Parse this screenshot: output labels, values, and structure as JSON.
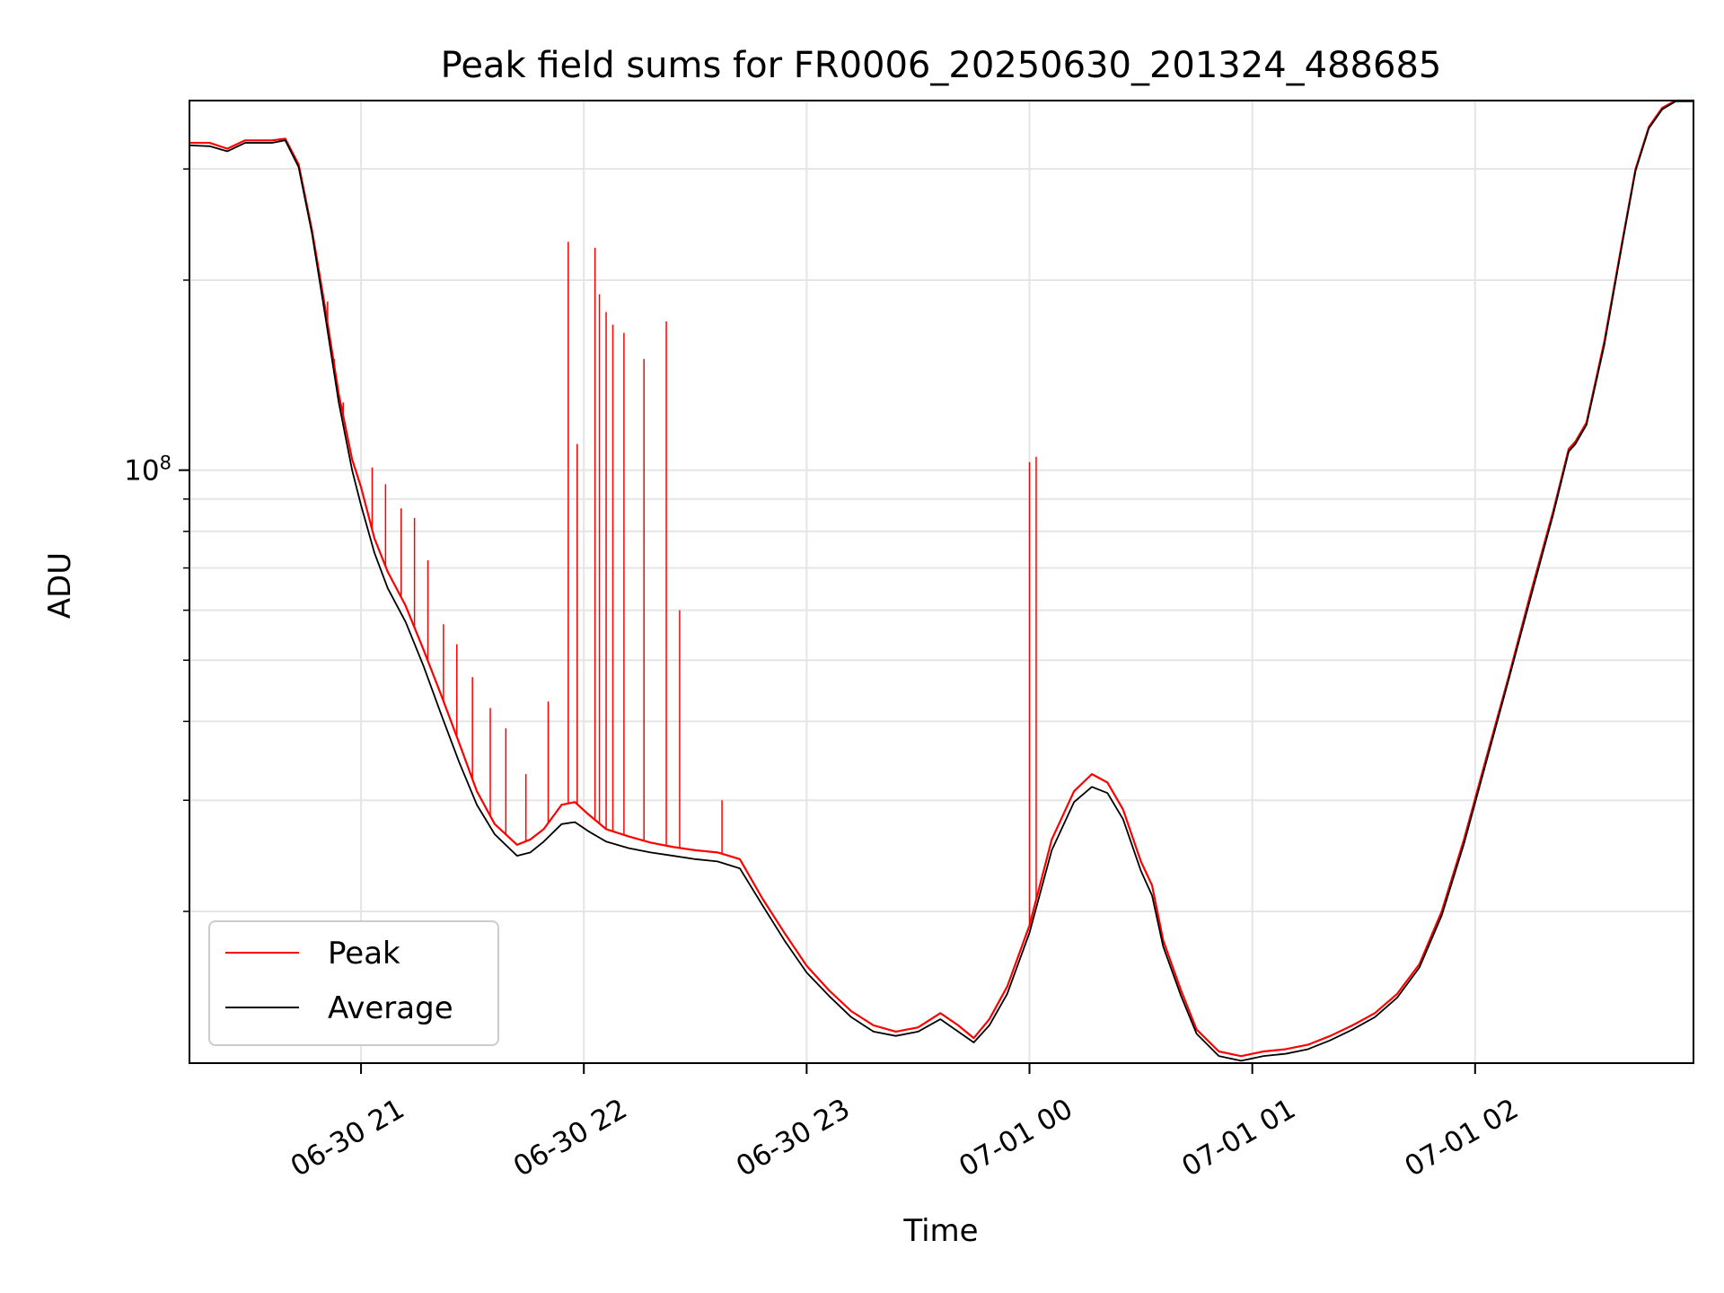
{
  "chart_data": {
    "type": "line",
    "title": "Peak field sums for FR0006_20250630_201324_488685",
    "xlabel": "Time",
    "ylabel": "ADU",
    "x_tick_labels": [
      "06-30 21",
      "06-30 22",
      "06-30 23",
      "07-01 00",
      "07-01 01",
      "07-01 02"
    ],
    "y_tick_labels": [
      "10^8"
    ],
    "y_scale": "log",
    "grid": true,
    "legend": {
      "position": "bottom-left",
      "entries": [
        "Peak",
        "Average"
      ]
    },
    "xlim": [
      "2025-06-30 20:14",
      "2025-07-01 02:58"
    ],
    "ylim": [
      11500000,
      385000000
    ],
    "x_data_unit": "time",
    "series": [
      {
        "name": "Peak",
        "color": "#ff0000",
        "values": [
          [
            20.23,
            330000000
          ],
          [
            20.32,
            330000000
          ],
          [
            20.4,
            323000000
          ],
          [
            20.48,
            333000000
          ],
          [
            20.6,
            333000000
          ],
          [
            20.66,
            335000000
          ],
          [
            20.72,
            305000000
          ],
          [
            20.78,
            240000000
          ],
          [
            20.84,
            180000000
          ],
          [
            20.9,
            132000000
          ],
          [
            20.96,
            104000000
          ],
          [
            21.0,
            94000000
          ],
          [
            21.06,
            78000000
          ],
          [
            21.12,
            69000000
          ],
          [
            21.2,
            61000000
          ],
          [
            21.28,
            52000000
          ],
          [
            21.36,
            44000000
          ],
          [
            21.44,
            37000000
          ],
          [
            21.52,
            31000000
          ],
          [
            21.6,
            27500000
          ],
          [
            21.7,
            25500000
          ],
          [
            21.76,
            26000000
          ],
          [
            21.82,
            27000000
          ],
          [
            21.9,
            29500000
          ],
          [
            21.96,
            29800000
          ],
          [
            22.02,
            28500000
          ],
          [
            22.1,
            27000000
          ],
          [
            22.2,
            26300000
          ],
          [
            22.3,
            25700000
          ],
          [
            22.4,
            25300000
          ],
          [
            22.5,
            25000000
          ],
          [
            22.6,
            24800000
          ],
          [
            22.7,
            24200000
          ],
          [
            22.8,
            21000000
          ],
          [
            22.9,
            18500000
          ],
          [
            23.0,
            16400000
          ],
          [
            23.1,
            15000000
          ],
          [
            23.2,
            13900000
          ],
          [
            23.3,
            13200000
          ],
          [
            23.4,
            12900000
          ],
          [
            23.5,
            13100000
          ],
          [
            23.6,
            13800000
          ],
          [
            23.68,
            13200000
          ],
          [
            23.75,
            12600000
          ],
          [
            23.82,
            13500000
          ],
          [
            23.9,
            15200000
          ],
          [
            24.0,
            19000000
          ],
          [
            24.1,
            26000000
          ],
          [
            24.2,
            31000000
          ],
          [
            24.28,
            33000000
          ],
          [
            24.35,
            32000000
          ],
          [
            24.42,
            29000000
          ],
          [
            24.5,
            24000000
          ],
          [
            24.55,
            22000000
          ],
          [
            24.6,
            18000000
          ],
          [
            24.68,
            15000000
          ],
          [
            24.75,
            13000000
          ],
          [
            24.85,
            12000000
          ],
          [
            24.95,
            11800000
          ],
          [
            25.05,
            12000000
          ],
          [
            25.15,
            12100000
          ],
          [
            25.25,
            12300000
          ],
          [
            25.35,
            12700000
          ],
          [
            25.45,
            13200000
          ],
          [
            25.55,
            13800000
          ],
          [
            25.65,
            14800000
          ],
          [
            25.75,
            16500000
          ],
          [
            25.85,
            20000000
          ],
          [
            25.95,
            26000000
          ],
          [
            26.05,
            35000000
          ],
          [
            26.15,
            47000000
          ],
          [
            26.25,
            64000000
          ],
          [
            26.35,
            86000000
          ],
          [
            26.42,
            108000000
          ],
          [
            26.45,
            111000000
          ],
          [
            26.5,
            119000000
          ],
          [
            26.58,
            160000000
          ],
          [
            26.66,
            230000000
          ],
          [
            26.72,
            300000000
          ],
          [
            26.78,
            350000000
          ],
          [
            26.84,
            375000000
          ],
          [
            26.9,
            385000000
          ],
          [
            26.98,
            385000000
          ]
        ]
      },
      {
        "name": "Average",
        "color": "#000000",
        "values": [
          [
            20.23,
            327000000
          ],
          [
            20.32,
            326000000
          ],
          [
            20.4,
            320000000
          ],
          [
            20.48,
            330000000
          ],
          [
            20.6,
            330000000
          ],
          [
            20.66,
            333000000
          ],
          [
            20.72,
            302000000
          ],
          [
            20.78,
            237000000
          ],
          [
            20.84,
            175000000
          ],
          [
            20.9,
            128000000
          ],
          [
            20.96,
            100000000
          ],
          [
            21.0,
            88000000
          ],
          [
            21.06,
            74000000
          ],
          [
            21.12,
            65000000
          ],
          [
            21.2,
            57500000
          ],
          [
            21.28,
            49000000
          ],
          [
            21.36,
            41000000
          ],
          [
            21.44,
            34500000
          ],
          [
            21.52,
            29500000
          ],
          [
            21.6,
            26500000
          ],
          [
            21.7,
            24500000
          ],
          [
            21.76,
            24800000
          ],
          [
            21.82,
            25800000
          ],
          [
            21.9,
            27500000
          ],
          [
            21.96,
            27700000
          ],
          [
            22.02,
            26800000
          ],
          [
            22.1,
            25800000
          ],
          [
            22.2,
            25200000
          ],
          [
            22.3,
            24800000
          ],
          [
            22.4,
            24500000
          ],
          [
            22.5,
            24200000
          ],
          [
            22.6,
            24000000
          ],
          [
            22.7,
            23400000
          ],
          [
            22.8,
            20500000
          ],
          [
            22.9,
            18000000
          ],
          [
            23.0,
            16000000
          ],
          [
            23.1,
            14700000
          ],
          [
            23.2,
            13600000
          ],
          [
            23.3,
            12900000
          ],
          [
            23.4,
            12700000
          ],
          [
            23.5,
            12900000
          ],
          [
            23.6,
            13500000
          ],
          [
            23.68,
            12900000
          ],
          [
            23.75,
            12400000
          ],
          [
            23.82,
            13200000
          ],
          [
            23.9,
            14800000
          ],
          [
            24.0,
            18500000
          ],
          [
            24.1,
            25000000
          ],
          [
            24.2,
            29800000
          ],
          [
            24.28,
            31500000
          ],
          [
            24.35,
            30800000
          ],
          [
            24.42,
            28000000
          ],
          [
            24.5,
            23200000
          ],
          [
            24.55,
            21200000
          ],
          [
            24.6,
            17600000
          ],
          [
            24.68,
            14700000
          ],
          [
            24.75,
            12800000
          ],
          [
            24.85,
            11800000
          ],
          [
            24.95,
            11600000
          ],
          [
            25.05,
            11800000
          ],
          [
            25.15,
            11900000
          ],
          [
            25.25,
            12100000
          ],
          [
            25.35,
            12500000
          ],
          [
            25.45,
            13000000
          ],
          [
            25.55,
            13600000
          ],
          [
            25.65,
            14600000
          ],
          [
            25.75,
            16300000
          ],
          [
            25.85,
            19700000
          ],
          [
            25.95,
            25600000
          ],
          [
            26.05,
            34500000
          ],
          [
            26.15,
            46500000
          ],
          [
            26.25,
            63000000
          ],
          [
            26.35,
            85000000
          ],
          [
            26.42,
            107000000
          ],
          [
            26.45,
            110000000
          ],
          [
            26.5,
            118000000
          ],
          [
            26.58,
            158000000
          ],
          [
            26.66,
            228000000
          ],
          [
            26.72,
            298000000
          ],
          [
            26.78,
            348000000
          ],
          [
            26.84,
            373000000
          ],
          [
            26.9,
            384000000
          ],
          [
            26.98,
            384000000
          ]
        ]
      }
    ],
    "peak_spikes": [
      [
        20.85,
        185000000
      ],
      [
        20.88,
        150000000
      ],
      [
        20.92,
        128000000
      ],
      [
        21.05,
        101000000
      ],
      [
        21.11,
        95000000
      ],
      [
        21.18,
        87000000
      ],
      [
        21.24,
        84000000
      ],
      [
        21.3,
        72000000
      ],
      [
        21.37,
        57000000
      ],
      [
        21.43,
        53000000
      ],
      [
        21.5,
        47000000
      ],
      [
        21.58,
        42000000
      ],
      [
        21.65,
        39000000
      ],
      [
        21.74,
        33000000
      ],
      [
        21.84,
        43000000
      ],
      [
        21.93,
        230000000
      ],
      [
        21.97,
        110000000
      ],
      [
        22.05,
        225000000
      ],
      [
        22.07,
        190000000
      ],
      [
        22.1,
        178000000
      ],
      [
        22.13,
        170000000
      ],
      [
        22.18,
        165000000
      ],
      [
        22.27,
        150000000
      ],
      [
        22.37,
        172000000
      ],
      [
        22.43,
        60000000
      ],
      [
        22.62,
        30000000
      ],
      [
        24.0,
        103000000
      ],
      [
        24.03,
        105000000
      ]
    ]
  }
}
